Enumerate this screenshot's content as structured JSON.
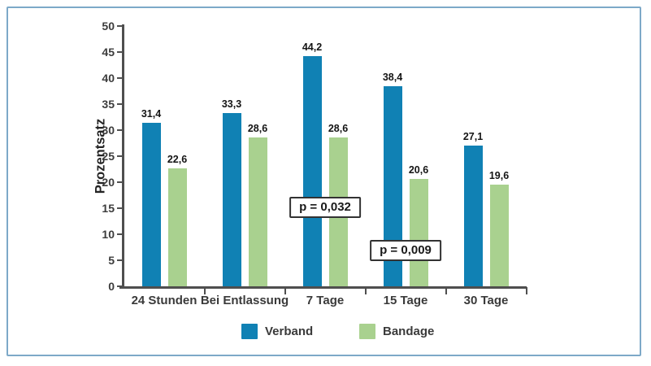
{
  "frame": {
    "border_color": "#7da9c8"
  },
  "axis_color": "#4f4f4f",
  "chart_data": {
    "type": "bar",
    "title": "",
    "categories": [
      "24 Stunden",
      "Bei Entlassung",
      "7 Tage",
      "15 Tage",
      "30 Tage"
    ],
    "series": [
      {
        "name": "Verband",
        "color": "#1081b4",
        "values": [
          31.4,
          33.3,
          44.2,
          38.4,
          27.1
        ],
        "labels": [
          "31,4",
          "33,3",
          "44,2",
          "38,4",
          "27,1"
        ]
      },
      {
        "name": "Bandage",
        "color": "#a9d18f",
        "values": [
          22.6,
          28.6,
          28.6,
          20.6,
          19.6
        ],
        "labels": [
          "22,6",
          "28,6",
          "28,6",
          "20,6",
          "19,6"
        ]
      }
    ],
    "xlabel": "",
    "ylabel": "Prozentsatz",
    "ylim": [
      0,
      50
    ],
    "ytick_step": 5,
    "grid": false,
    "legend_position": "bottom",
    "annotations": [
      {
        "text": "p = 0,032",
        "category": "7 Tage",
        "y_value": 15.2
      },
      {
        "text": "p = 0,009",
        "category": "15 Tage",
        "y_value": 6.9
      }
    ]
  }
}
